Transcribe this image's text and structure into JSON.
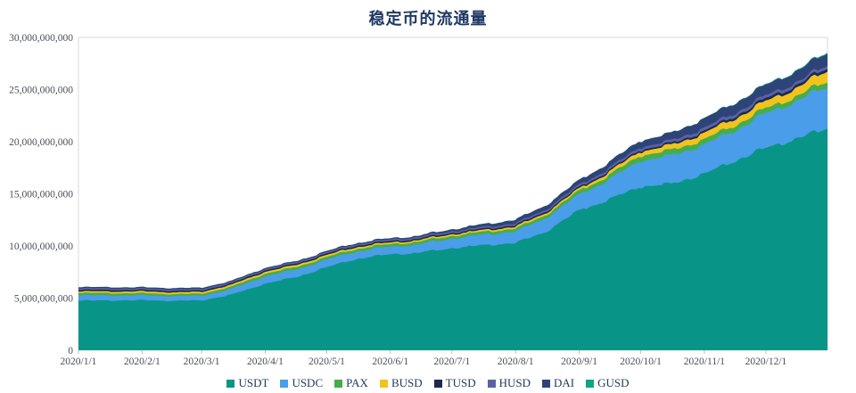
{
  "title": "稳定币的流通量",
  "colors": {
    "title_text": "#1F3864",
    "axis_text": "#4A4E5A",
    "legend_text": "#223A5E",
    "plot_border": "#D9D9D9",
    "tick_mark": "#B9BDC4",
    "background": "#FFFFFF"
  },
  "chart_data": {
    "type": "area",
    "stacked": true,
    "title": "稳定币的流通量",
    "xlabel": "",
    "ylabel": "",
    "unit_note": "series values in billions of USD; y axis shown in absolute units",
    "ylim": [
      0,
      30000000000
    ],
    "grid": false,
    "legend_position": "bottom",
    "y_ticks": [
      "0",
      "5,000,000,000",
      "10,000,000,000",
      "15,000,000,000",
      "20,000,000,000",
      "25,000,000,000",
      "30,000,000,000"
    ],
    "y_tick_values_billions": [
      0,
      5,
      10,
      15,
      20,
      25,
      30
    ],
    "x_tick_labels": [
      "2020/1/1",
      "2020/2/1",
      "2020/3/1",
      "2020/4/1",
      "2020/5/1",
      "2020/6/1",
      "2020/7/1",
      "2020/8/1",
      "2020/9/1",
      "2020/10/1",
      "2020/11/1",
      "2020/12/1"
    ],
    "x_tick_days": [
      0,
      31,
      60,
      91,
      121,
      152,
      182,
      213,
      244,
      274,
      305,
      335
    ],
    "x_range_days": [
      0,
      365
    ],
    "sample_days": [
      0,
      15,
      31,
      46,
      60,
      75,
      91,
      105,
      121,
      135,
      152,
      166,
      182,
      196,
      213,
      227,
      244,
      258,
      274,
      288,
      305,
      319,
      335,
      350,
      365
    ],
    "series": [
      {
        "name": "USDT",
        "color": "#089587",
        "values_billions": [
          4.75,
          4.78,
          4.8,
          4.74,
          4.78,
          5.35,
          6.4,
          6.95,
          7.95,
          8.75,
          9.2,
          9.35,
          9.8,
          10.05,
          10.3,
          11.3,
          13.4,
          14.4,
          15.7,
          15.9,
          16.9,
          18.1,
          19.4,
          20.3,
          21.3
        ]
      },
      {
        "name": "USDC",
        "color": "#4A9DE8",
        "values_billions": [
          0.52,
          0.48,
          0.46,
          0.45,
          0.44,
          0.55,
          0.7,
          0.72,
          0.73,
          0.72,
          0.73,
          0.8,
          0.93,
          1.0,
          1.1,
          1.3,
          1.5,
          1.9,
          2.5,
          2.7,
          2.8,
          2.9,
          3.3,
          3.6,
          4.0
        ]
      },
      {
        "name": "PAX",
        "color": "#46AD4B",
        "values_billions": [
          0.22,
          0.22,
          0.21,
          0.2,
          0.2,
          0.22,
          0.25,
          0.25,
          0.25,
          0.25,
          0.25,
          0.26,
          0.26,
          0.27,
          0.28,
          0.3,
          0.37,
          0.4,
          0.5,
          0.5,
          0.5,
          0.5,
          0.48,
          0.48,
          0.5
        ]
      },
      {
        "name": "BUSD",
        "color": "#F2C31C",
        "values_billions": [
          0.15,
          0.16,
          0.17,
          0.17,
          0.17,
          0.18,
          0.19,
          0.19,
          0.19,
          0.17,
          0.15,
          0.15,
          0.15,
          0.16,
          0.18,
          0.19,
          0.2,
          0.3,
          0.4,
          0.48,
          0.6,
          0.64,
          0.68,
          0.8,
          1.0
        ]
      },
      {
        "name": "TUSD",
        "color": "#1A2B4C",
        "values_billions": [
          0.15,
          0.15,
          0.14,
          0.14,
          0.14,
          0.14,
          0.14,
          0.14,
          0.14,
          0.14,
          0.14,
          0.14,
          0.14,
          0.14,
          0.15,
          0.15,
          0.15,
          0.16,
          0.16,
          0.17,
          0.2,
          0.22,
          0.25,
          0.26,
          0.28
        ]
      },
      {
        "name": "HUSD",
        "color": "#5B60A6",
        "values_billions": [
          0.14,
          0.13,
          0.13,
          0.13,
          0.13,
          0.13,
          0.13,
          0.13,
          0.13,
          0.14,
          0.15,
          0.15,
          0.15,
          0.16,
          0.17,
          0.18,
          0.2,
          0.22,
          0.25,
          0.26,
          0.3,
          0.3,
          0.3,
          0.29,
          0.28
        ]
      },
      {
        "name": "DAI",
        "color": "#2E4478",
        "values_billions": [
          0.12,
          0.12,
          0.12,
          0.13,
          0.13,
          0.1,
          0.1,
          0.1,
          0.11,
          0.11,
          0.12,
          0.13,
          0.19,
          0.25,
          0.35,
          0.4,
          0.45,
          0.55,
          0.62,
          0.7,
          0.9,
          0.95,
          1.0,
          1.05,
          1.15
        ]
      },
      {
        "name": "GUSD",
        "color": "#12A28B",
        "values_billions": [
          0.005,
          0.005,
          0.004,
          0.004,
          0.004,
          0.004,
          0.004,
          0.004,
          0.004,
          0.004,
          0.004,
          0.004,
          0.004,
          0.005,
          0.006,
          0.008,
          0.01,
          0.012,
          0.015,
          0.02,
          0.03,
          0.04,
          0.06,
          0.08,
          0.1
        ]
      }
    ]
  }
}
